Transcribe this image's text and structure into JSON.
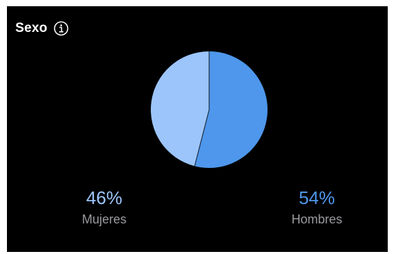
{
  "header": {
    "title": "Sexo",
    "info_icon": "info-circle-icon"
  },
  "colors": {
    "background": "#000000",
    "women": "#9cc5fb",
    "men": "#4e97ec",
    "label": "#9a9a9f"
  },
  "stats": {
    "women": {
      "percent_label": "46%",
      "label": "Mujeres"
    },
    "men": {
      "percent_label": "54%",
      "label": "Hombres"
    }
  },
  "chart_data": {
    "type": "pie",
    "title": "Sexo",
    "start_angle_deg": 0,
    "direction": "clockwise",
    "slices": [
      {
        "label": "Hombres",
        "value": 54,
        "color": "#4e97ec"
      },
      {
        "label": "Mujeres",
        "value": 46,
        "color": "#9cc5fb"
      }
    ]
  }
}
